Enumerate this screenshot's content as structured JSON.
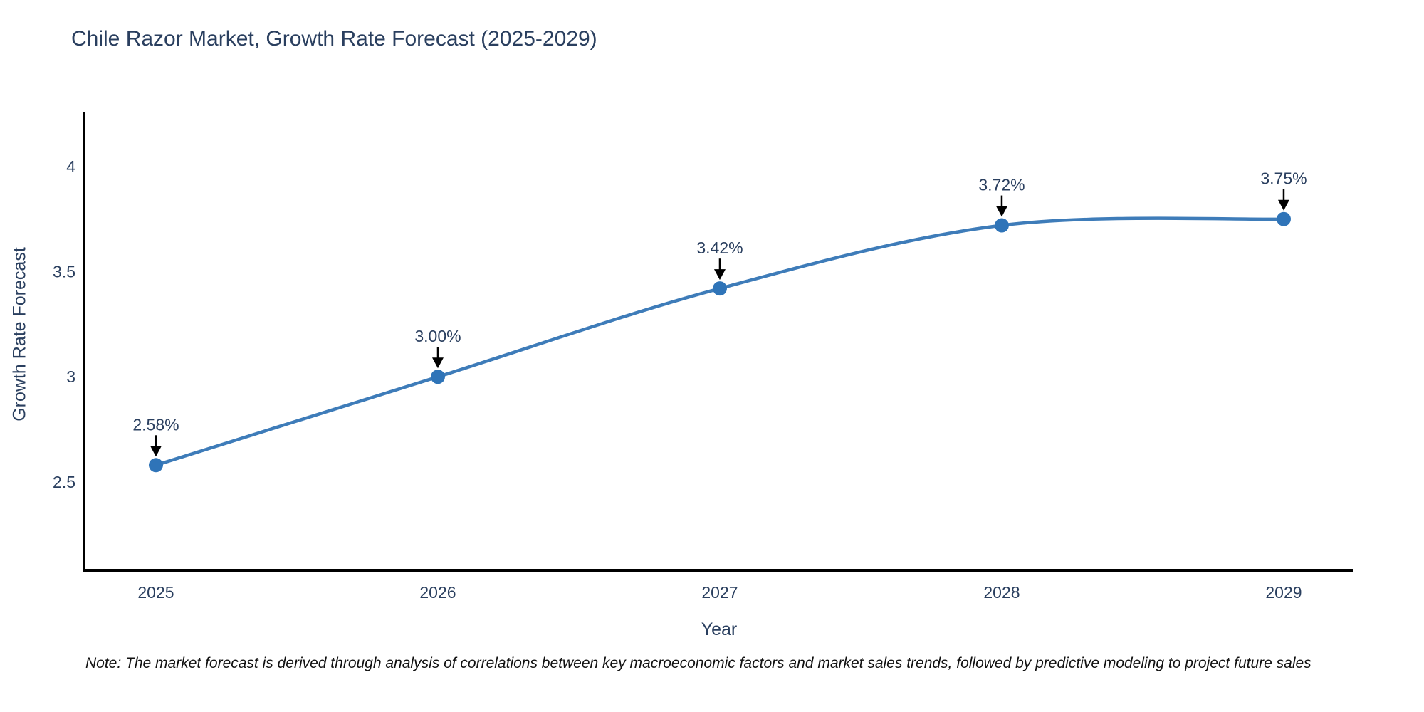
{
  "title": "Chile Razor Market, Growth Rate Forecast (2025-2029)",
  "footnote": "Note: The market forecast is derived through analysis of correlations between key macroeconomic factors and market sales trends, followed by predictive modeling to project future sales",
  "chart_data": {
    "type": "line",
    "title": "Chile Razor Market, Growth Rate Forecast (2025-2029)",
    "xlabel": "Year",
    "ylabel": "Growth Rate Forecast",
    "x": [
      2025,
      2026,
      2027,
      2028,
      2029
    ],
    "series": [
      {
        "name": "Growth Rate Forecast",
        "values": [
          2.58,
          3.0,
          3.42,
          3.72,
          3.75
        ]
      }
    ],
    "point_labels": [
      "2.58%",
      "3.00%",
      "3.42%",
      "3.72%",
      "3.75%"
    ],
    "xtick_labels": [
      "2025",
      "2026",
      "2027",
      "2028",
      "2029"
    ],
    "yticks": [
      2.5,
      3,
      3.5,
      4
    ],
    "ytick_labels": [
      "2.5",
      "3",
      "3.5",
      "4"
    ],
    "xlim": [
      2024.745,
      2029.245
    ],
    "ylim": [
      2.08,
      4.25
    ],
    "grid": false,
    "legend_position": "none",
    "line_shape": "spline",
    "annotation_arrows": true,
    "colors": {
      "line": "#3E7CB9",
      "marker": "#2F74B8",
      "axis": "#000000",
      "tick_text": "#2a3f5f",
      "annotation_text": "#2a3f5f",
      "arrow": "#000000",
      "title_text": "#2a3f5f",
      "background": "#ffffff"
    }
  }
}
